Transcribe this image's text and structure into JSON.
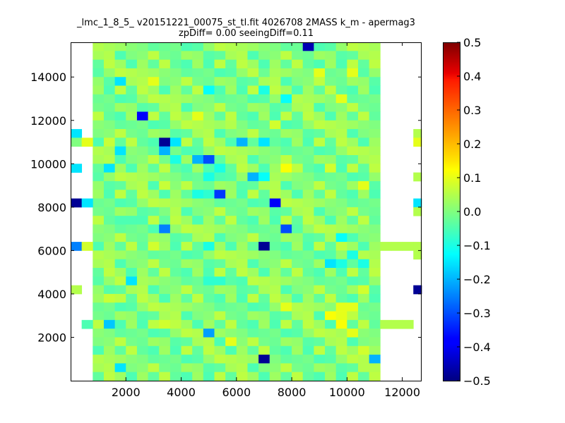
{
  "chart_data": {
    "type": "heatmap",
    "title": "_lmc_1_8_5_ v20151221_00075_st_tl.fit 4026708 2MASS k_m - apermag3",
    "subtitle": "zpDiff= 0.00 seeingDiff=0.11",
    "xlabel": "",
    "ylabel": "",
    "xlim": [
      0,
      12700
    ],
    "ylim": [
      0,
      15600
    ],
    "x_ticks": [
      2000,
      4000,
      6000,
      8000,
      10000,
      12000
    ],
    "y_ticks": [
      2000,
      4000,
      6000,
      8000,
      10000,
      12000,
      14000
    ],
    "x_tick_labels": [
      "2000",
      "4000",
      "6000",
      "8000",
      "10000",
      "12000"
    ],
    "y_tick_labels": [
      "2000",
      "4000",
      "6000",
      "8000",
      "10000",
      "12000",
      "14000"
    ],
    "colorbar": {
      "colormap": "jet",
      "vmin": -0.5,
      "vmax": 0.5,
      "ticks": [
        0.5,
        0.4,
        0.3,
        0.2,
        0.1,
        0.0,
        -0.1,
        -0.2,
        -0.3,
        -0.4,
        -0.5
      ],
      "tick_labels": [
        "0.5",
        "0.4",
        "0.3",
        "0.2",
        "0.1",
        "0.0",
        "−0.1",
        "−0.2",
        "−0.3",
        "−0.4",
        "−0.5"
      ]
    },
    "grid": {
      "x0": 0,
      "x_step": 400,
      "cols": 32,
      "y_top": 15600,
      "y_step": 400,
      "rows": 39,
      "main_col_range": [
        2,
        27
      ],
      "main_value_pattern": [
        0.02,
        -0.03,
        0.05,
        -0.01,
        0.03,
        -0.04,
        0.0,
        0.06,
        -0.02,
        0.04,
        -0.05,
        0.01
      ]
    },
    "special_cells": [
      {
        "c": 21,
        "r": 0,
        "v": -0.45
      },
      {
        "c": 17,
        "r": 3,
        "v": -0.02
      },
      {
        "c": 22,
        "r": 3,
        "v": 0.1
      },
      {
        "c": 25,
        "r": 3,
        "v": 0.1
      },
      {
        "c": 4,
        "r": 4,
        "v": -0.15
      },
      {
        "c": 7,
        "r": 4,
        "v": 0.1
      },
      {
        "c": 12,
        "r": 5,
        "v": -0.12
      },
      {
        "c": 17,
        "r": 5,
        "v": -0.1
      },
      {
        "c": 19,
        "r": 6,
        "v": -0.12
      },
      {
        "c": 24,
        "r": 6,
        "v": 0.1
      },
      {
        "c": 6,
        "r": 8,
        "v": -0.38
      },
      {
        "c": 11,
        "r": 8,
        "v": 0.1
      },
      {
        "c": 14,
        "r": 9,
        "v": 0.05
      },
      {
        "c": 18,
        "r": 9,
        "v": 0.08
      },
      {
        "c": 0,
        "r": 10,
        "v": -0.15
      },
      {
        "c": 0,
        "r": 11,
        "v": 0.0
      },
      {
        "c": 31,
        "r": 10,
        "v": 0.05
      },
      {
        "c": 31,
        "r": 11,
        "v": 0.1
      },
      {
        "c": 3,
        "r": 11,
        "v": 0.07
      },
      {
        "c": 8,
        "r": 11,
        "v": -0.48
      },
      {
        "c": 9,
        "r": 11,
        "v": -0.15
      },
      {
        "c": 15,
        "r": 11,
        "v": -0.2
      },
      {
        "c": 17,
        "r": 11,
        "v": -0.15
      },
      {
        "c": 1,
        "r": 11,
        "v": 0.1
      },
      {
        "c": 4,
        "r": 12,
        "v": -0.15
      },
      {
        "c": 8,
        "r": 12,
        "v": -0.2
      },
      {
        "c": 11,
        "r": 13,
        "v": -0.2
      },
      {
        "c": 12,
        "r": 13,
        "v": -0.3
      },
      {
        "c": 9,
        "r": 13,
        "v": -0.1
      },
      {
        "c": 13,
        "r": 14,
        "v": -0.1
      },
      {
        "c": 0,
        "r": 14,
        "v": -0.15
      },
      {
        "c": 3,
        "r": 14,
        "v": -0.15
      },
      {
        "c": 19,
        "r": 14,
        "v": 0.12
      },
      {
        "c": 23,
        "r": 14,
        "v": 0.08
      },
      {
        "c": 16,
        "r": 15,
        "v": -0.2
      },
      {
        "c": 17,
        "r": 15,
        "v": -0.12
      },
      {
        "c": 12,
        "r": 15,
        "v": -0.1
      },
      {
        "c": 31,
        "r": 15,
        "v": 0.05
      },
      {
        "c": 8,
        "r": 16,
        "v": 0.07
      },
      {
        "c": 26,
        "r": 16,
        "v": 0.1
      },
      {
        "c": 11,
        "r": 17,
        "v": -0.1
      },
      {
        "c": 12,
        "r": 17,
        "v": -0.08
      },
      {
        "c": 13,
        "r": 17,
        "v": -0.32
      },
      {
        "c": 0,
        "r": 18,
        "v": -0.48
      },
      {
        "c": 1,
        "r": 18,
        "v": -0.15
      },
      {
        "c": 18,
        "r": 18,
        "v": -0.38
      },
      {
        "c": 31,
        "r": 18,
        "v": -0.15
      },
      {
        "c": 8,
        "r": 19,
        "v": 0.0
      },
      {
        "c": 31,
        "r": 19,
        "v": 0.05
      },
      {
        "c": 5,
        "r": 20,
        "v": -0.05
      },
      {
        "c": 8,
        "r": 21,
        "v": -0.25
      },
      {
        "c": 19,
        "r": 21,
        "v": -0.3
      },
      {
        "c": 24,
        "r": 22,
        "v": -0.12
      },
      {
        "c": 0,
        "r": 23,
        "v": -0.25
      },
      {
        "c": 1,
        "r": 23,
        "v": 0.08
      },
      {
        "c": 7,
        "r": 23,
        "v": 0.08
      },
      {
        "c": 12,
        "r": 23,
        "v": -0.1
      },
      {
        "c": 17,
        "r": 23,
        "v": -0.48
      },
      {
        "c": 28,
        "r": 23,
        "v": 0.05
      },
      {
        "c": 29,
        "r": 23,
        "v": 0.05
      },
      {
        "c": 30,
        "r": 23,
        "v": 0.05
      },
      {
        "c": 31,
        "r": 23,
        "v": 0.05
      },
      {
        "c": 25,
        "r": 24,
        "v": -0.1
      },
      {
        "c": 31,
        "r": 24,
        "v": 0.05
      },
      {
        "c": 23,
        "r": 25,
        "v": -0.15
      },
      {
        "c": 24,
        "r": 25,
        "v": -0.1
      },
      {
        "c": 26,
        "r": 25,
        "v": -0.1
      },
      {
        "c": 5,
        "r": 27,
        "v": -0.15
      },
      {
        "c": 12,
        "r": 27,
        "v": -0.08
      },
      {
        "c": 13,
        "r": 27,
        "v": -0.08
      },
      {
        "c": 15,
        "r": 27,
        "v": -0.05
      },
      {
        "c": 0,
        "r": 28,
        "v": 0.05
      },
      {
        "c": 31,
        "r": 28,
        "v": -0.48
      },
      {
        "c": 26,
        "r": 28,
        "v": 0.08
      },
      {
        "c": 3,
        "r": 29,
        "v": 0.07
      },
      {
        "c": 19,
        "r": 30,
        "v": 0.1
      },
      {
        "c": 24,
        "r": 30,
        "v": 0.1
      },
      {
        "c": 25,
        "r": 30,
        "v": 0.1
      },
      {
        "c": 23,
        "r": 31,
        "v": 0.12
      },
      {
        "c": 24,
        "r": 31,
        "v": 0.1
      },
      {
        "c": 1,
        "r": 32,
        "v": -0.05
      },
      {
        "c": 3,
        "r": 32,
        "v": -0.18
      },
      {
        "c": 28,
        "r": 32,
        "v": 0.05
      },
      {
        "c": 29,
        "r": 32,
        "v": 0.05
      },
      {
        "c": 30,
        "r": 32,
        "v": 0.05
      },
      {
        "c": 8,
        "r": 32,
        "v": 0.08
      },
      {
        "c": 24,
        "r": 32,
        "v": 0.12
      },
      {
        "c": 12,
        "r": 33,
        "v": -0.22
      },
      {
        "c": 25,
        "r": 33,
        "v": 0.1
      },
      {
        "c": 14,
        "r": 34,
        "v": 0.1
      },
      {
        "c": 2,
        "r": 35,
        "v": -0.05
      },
      {
        "c": 26,
        "r": 35,
        "v": 0.08
      },
      {
        "c": 17,
        "r": 36,
        "v": -0.48
      },
      {
        "c": 27,
        "r": 36,
        "v": -0.2
      },
      {
        "c": 4,
        "r": 37,
        "v": -0.15
      },
      {
        "c": 26,
        "r": 37,
        "v": 0.05
      }
    ]
  }
}
